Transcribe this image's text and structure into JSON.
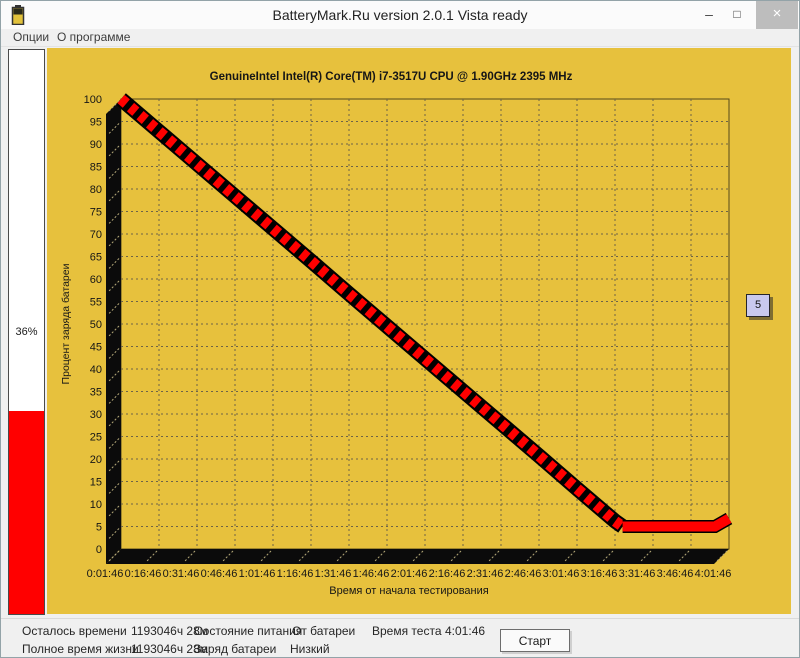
{
  "window": {
    "title": "BatteryMark.Ru version 2.0.1 Vista ready",
    "controls": {
      "minimize": "–",
      "maximize": "□",
      "close": "×"
    }
  },
  "menu": {
    "items": [
      {
        "label": "Опции"
      },
      {
        "label": "О программе"
      }
    ]
  },
  "battery_gauge": {
    "percent": 36,
    "percent_label": "36%",
    "fill_color": "#ff0000"
  },
  "series_mark": {
    "label": "5"
  },
  "status_bar": {
    "time_left": {
      "label": "Осталось времени",
      "value": "1193046ч 28м"
    },
    "full_lifetime": {
      "label": "Полное время жизни",
      "value": "1193046ч 28м"
    },
    "power_state": {
      "label": "Состояние питания",
      "value": "От батареи"
    },
    "battery_charge": {
      "label": "Заряд батареи",
      "value": "Низкий"
    },
    "test_time": {
      "label": "Время теста",
      "value": "4:01:46"
    },
    "start_button": "Старт"
  },
  "chart_data": {
    "type": "line",
    "title": "GenuineIntel Intel(R) Core(TM) i7-3517U CPU @ 1.90GHz 2395 MHz",
    "xlabel": "Время от начала тестирования",
    "ylabel": "Процент заряда батареи",
    "ylim": [
      0,
      100
    ],
    "ytick_step": 5,
    "grid": "dashed",
    "legend_position": "right-floating",
    "plot_bg": "#e7c13d",
    "line_color": "#ff0000",
    "line_edge_color": "#000000",
    "x_ticks": [
      "0:01:46",
      "0:16:46",
      "0:31:46",
      "0:46:46",
      "1:01:46",
      "1:16:46",
      "1:31:46",
      "1:46:46",
      "2:01:46",
      "2:16:46",
      "2:31:46",
      "2:46:46",
      "3:01:46",
      "3:16:46",
      "3:31:46",
      "3:46:46",
      "4:01:46"
    ],
    "series": [
      {
        "name": "5",
        "flat_level": 5,
        "points": [
          [
            "0:01:46",
            100.0
          ],
          [
            "0:16:46",
            92.8
          ],
          [
            "0:31:46",
            85.6
          ],
          [
            "0:46:46",
            78.4
          ],
          [
            "1:01:46",
            71.2
          ],
          [
            "1:16:46",
            64.0
          ],
          [
            "1:31:46",
            56.7
          ],
          [
            "1:46:46",
            49.5
          ],
          [
            "2:01:46",
            42.3
          ],
          [
            "2:16:46",
            35.1
          ],
          [
            "2:31:46",
            27.9
          ],
          [
            "2:46:46",
            20.7
          ],
          [
            "3:01:46",
            13.4
          ],
          [
            "3:16:46",
            6.2
          ],
          [
            "3:19:46",
            5.0
          ],
          [
            "3:31:46",
            5.0
          ],
          [
            "3:46:46",
            5.0
          ],
          [
            "4:01:46",
            5.0
          ]
        ]
      }
    ]
  }
}
